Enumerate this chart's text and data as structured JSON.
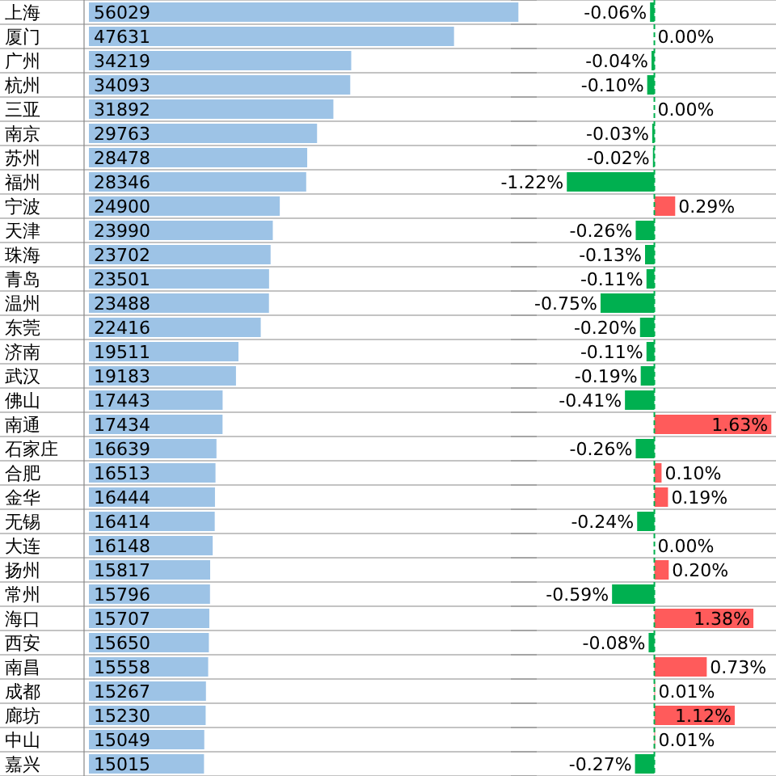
{
  "chart_data": [
    {
      "type": "bar",
      "orientation": "horizontal",
      "categories": [
        "上海",
        "厦门",
        "广州",
        "杭州",
        "三亚",
        "南京",
        "苏州",
        "福州",
        "宁波",
        "天津",
        "珠海",
        "青岛",
        "温州",
        "东莞",
        "济南",
        "武汉",
        "佛山",
        "南通",
        "石家庄",
        "合肥",
        "金华",
        "无锡",
        "大连",
        "扬州",
        "常州",
        "海口",
        "西安",
        "南昌",
        "成都",
        "廊坊",
        "中山",
        "嘉兴"
      ],
      "values": [
        56029,
        47631,
        34219,
        34093,
        31892,
        29763,
        28478,
        28346,
        24900,
        23990,
        23702,
        23501,
        23488,
        22416,
        19511,
        19183,
        17443,
        17434,
        16639,
        16513,
        16444,
        16414,
        16148,
        15817,
        15796,
        15707,
        15650,
        15558,
        15267,
        15230,
        15049,
        15015
      ],
      "color": "#9dc3e6",
      "xlim": [
        0,
        58000
      ],
      "data_labels": true,
      "grid": true
    },
    {
      "type": "bar",
      "orientation": "horizontal",
      "categories": [
        null,
        null,
        null,
        null,
        null,
        null,
        null,
        null,
        null,
        null,
        null,
        null,
        null,
        null,
        null,
        null,
        null,
        null,
        null,
        null,
        null,
        null,
        null,
        null,
        null,
        null,
        null,
        null,
        null,
        null,
        null,
        null
      ],
      "values": [
        -0.06,
        0.0,
        -0.04,
        -0.1,
        0.0,
        -0.03,
        -0.02,
        -1.22,
        0.29,
        -0.26,
        -0.13,
        -0.11,
        -0.75,
        -0.2,
        -0.11,
        -0.19,
        -0.41,
        1.63,
        -0.26,
        0.1,
        0.19,
        -0.24,
        0.0,
        0.2,
        -0.59,
        1.38,
        -0.08,
        0.73,
        0.01,
        1.12,
        0.01,
        -0.27
      ],
      "value_labels": [
        "-0.06%",
        "0.00%",
        "-0.04%",
        "-0.10%",
        "0.00%",
        "-0.03%",
        "-0.02%",
        "-1.22%",
        "0.29%",
        "-0.26%",
        "-0.13%",
        "-0.11%",
        "-0.75%",
        "-0.20%",
        "-0.11%",
        "-0.19%",
        "-0.41%",
        "1.63%",
        "-0.26%",
        "0.10%",
        "0.19%",
        "-0.24%",
        "0.00%",
        "0.20%",
        "-0.59%",
        "1.38%",
        "-0.08%",
        "0.73%",
        "0.01%",
        "1.12%",
        "0.01%",
        "-0.27%"
      ],
      "colors": [
        "#00b050",
        "#00b050",
        "#00b050",
        "#00b050",
        "#00b050",
        "#00b050",
        "#00b050",
        "#00b050",
        "#ff5b5b",
        "#00b050",
        "#00b050",
        "#00b050",
        "#00b050",
        "#00b050",
        "#00b050",
        "#00b050",
        "#00b050",
        "#ff5b5b",
        "#00b050",
        "#ff5b5b",
        "#ff5b5b",
        "#00b050",
        "#00b050",
        "#ff5b5b",
        "#00b050",
        "#ff5b5b",
        "#00b050",
        "#ff5b5b",
        "#ff5b5b",
        "#ff5b5b",
        "#ff5b5b",
        "#00b050"
      ],
      "xlim": [
        -2,
        1.65
      ],
      "ref_lines": [
        {
          "axis": "x",
          "value": 0,
          "color": "#00b050",
          "line_style": "dashed"
        }
      ],
      "grid": true
    }
  ]
}
